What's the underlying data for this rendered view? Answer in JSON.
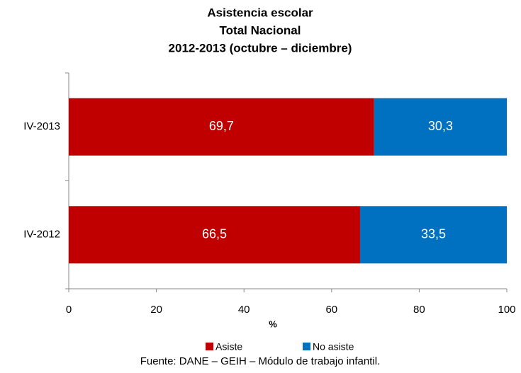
{
  "chart_data": {
    "type": "bar",
    "orientation": "horizontal",
    "stacked": true,
    "title": [
      "Asistencia escolar",
      "Total Nacional",
      "2012-2013 (octubre – diciembre)"
    ],
    "categories": [
      "IV-2013",
      "IV-2012"
    ],
    "series": [
      {
        "name": "Asiste",
        "color": "#c00000",
        "values": [
          69.7,
          66.5
        ],
        "value_labels": [
          "69,7",
          "66,5"
        ]
      },
      {
        "name": "No asiste",
        "color": "#0070c0",
        "values": [
          30.3,
          33.5
        ],
        "value_labels": [
          "30,3",
          "33,5"
        ]
      }
    ],
    "xlim": [
      0,
      100
    ],
    "xticks": [
      0,
      20,
      40,
      60,
      80,
      100
    ],
    "xlabel": "%",
    "legend": "bottom",
    "source": "Fuente: DANE – GEIH – Módulo de trabajo infantil."
  }
}
